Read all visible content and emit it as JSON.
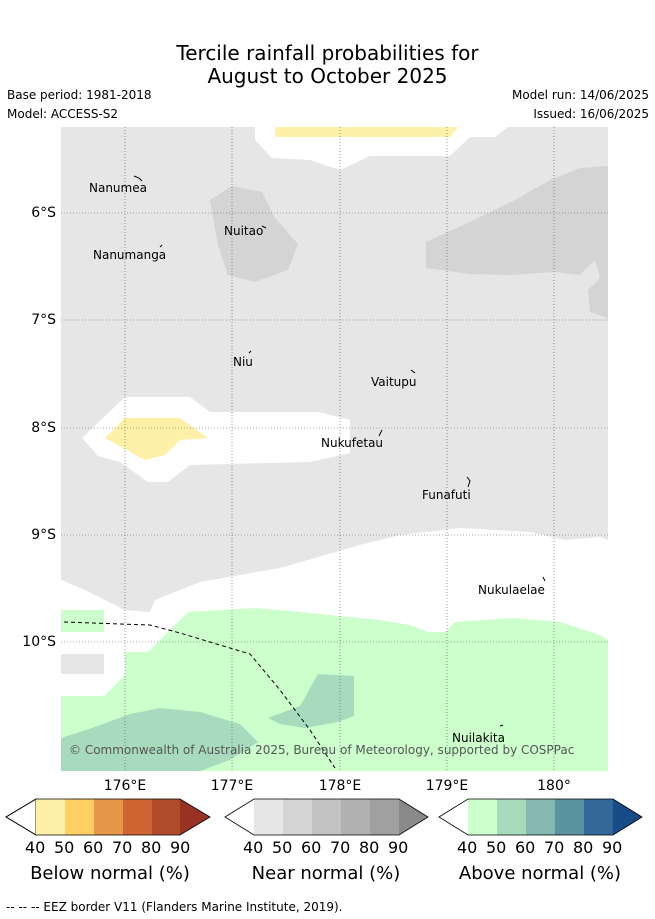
{
  "title_line1": "Tercile rainfall probabilities for",
  "title_line2": "August to October 2025",
  "base_period": "Base period: 1981-2018",
  "model": "Model: ACCESS-S2",
  "model_run": "Model run: 14/06/2025",
  "issued": "Issued: 16/06/2025",
  "copyright": "© Commonwealth of Australia 2025, Bureau of Meteorology, supported by COSPPac",
  "lat_labels": [
    "6°S",
    "7°S",
    "8°S",
    "9°S",
    "10°S"
  ],
  "lon_labels": [
    "176°E",
    "177°E",
    "178°E",
    "179°E",
    "180°"
  ],
  "places": [
    "Nanumea",
    "Nuitao",
    "Nanumanga",
    "Niu",
    "Vaitupu",
    "Nukufetau",
    "Funafuti",
    "Nukulaelae",
    "Nuilakita"
  ],
  "colorbars": [
    {
      "label": "Below normal (%)",
      "colors": [
        "#fff0a8",
        "#ffcf63",
        "#e69747",
        "#d06533",
        "#b04c2a",
        "#983323"
      ]
    },
    {
      "label": "Near normal (%)",
      "colors": [
        "#e6e6e6",
        "#d4d4d4",
        "#c2c2c2",
        "#b1b1b1",
        "#a0a0a0",
        "#8a8a8a"
      ]
    },
    {
      "label": "Above normal (%)",
      "colors": [
        "#ccffcc",
        "#a8dbbd",
        "#85b8b0",
        "#5c93a0",
        "#34679a",
        "#184c88"
      ]
    }
  ],
  "ticks": [
    "40",
    "50",
    "60",
    "70",
    "80",
    "90"
  ],
  "footnote": "--  --  -- EEZ border V11 (Flanders Marine Institute, 2019)."
}
